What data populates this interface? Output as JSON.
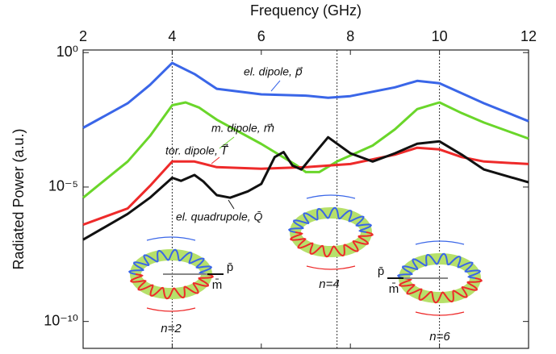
{
  "chart_data": {
    "type": "line",
    "title": "Frequency (GHz)",
    "y_label": "Radiated Power (a.u.)",
    "log_y": true,
    "xlim": [
      2,
      12
    ],
    "xticks": [
      2,
      4,
      6,
      8,
      10,
      12
    ],
    "ylim": [
      1e-11,
      1.25
    ],
    "yticks": [
      {
        "value": 1,
        "label": "10⁰"
      },
      {
        "value": 1e-05,
        "label": "10⁻⁵"
      },
      {
        "value": 1e-10,
        "label": "10⁻¹⁰"
      }
    ],
    "vlines": [
      4,
      7.7,
      10
    ],
    "series": [
      {
        "name": "el. dipole, p⃗",
        "color": "#3a66e8",
        "x": [
          2,
          3,
          3.5,
          4,
          4.5,
          5,
          6,
          7,
          7.5,
          8,
          9,
          9.5,
          10,
          11,
          12
        ],
        "values": [
          0.0016,
          0.013,
          0.063,
          0.41,
          0.16,
          0.045,
          0.028,
          0.025,
          0.021,
          0.024,
          0.051,
          0.089,
          0.072,
          0.013,
          0.0028
        ]
      },
      {
        "name": "m. dipole, m⃗",
        "color": "#6ad62a",
        "x": [
          2,
          3,
          3.5,
          4,
          4.3,
          4.6,
          5,
          6,
          6.8,
          7,
          7.3,
          7.7,
          8.5,
          9,
          9.5,
          10,
          10.5,
          11,
          12
        ],
        "values": [
          4e-06,
          8.9e-05,
          0.00079,
          0.011,
          0.014,
          0.0091,
          0.0032,
          0.0004,
          6.3e-05,
          3.6e-05,
          3.6e-05,
          8.9e-05,
          0.00035,
          0.0014,
          0.0079,
          0.014,
          0.0056,
          0.0025,
          0.00063
        ]
      },
      {
        "name": "tor. dipole, T⃗",
        "color": "#ee2a2a",
        "x": [
          2,
          3,
          3.5,
          4,
          4.5,
          5,
          6,
          7,
          8,
          9,
          9.5,
          10,
          10.5,
          11,
          12
        ],
        "values": [
          4e-07,
          1.6e-06,
          1.1e-05,
          8.9e-05,
          8.9e-05,
          5.5e-05,
          4.8e-05,
          5.5e-05,
          7.2e-05,
          0.00016,
          0.00029,
          0.00025,
          0.00013,
          8.9e-05,
          7.2e-05
        ]
      },
      {
        "name": "el. quadrupole, Q̄",
        "color": "#111111",
        "x": [
          2,
          3,
          3.5,
          4,
          4.2,
          4.5,
          4.7,
          5,
          5.3,
          5.7,
          6,
          6.3,
          6.5,
          6.7,
          6.9,
          7.2,
          7.5,
          8,
          8.5,
          9,
          9.5,
          10,
          10.5,
          11,
          12
        ],
        "values": [
          1.1e-07,
          1e-06,
          4e-06,
          2.2e-05,
          1.7e-05,
          2.8e-05,
          1.6e-05,
          5e-06,
          4e-06,
          6.9e-06,
          1.3e-05,
          0.00013,
          0.0002,
          6.3e-05,
          4.5e-05,
          0.00018,
          0.00071,
          0.00018,
          8.9e-05,
          0.00018,
          0.00041,
          0.0005,
          0.00016,
          4.5e-05,
          1.5e-05
        ]
      }
    ],
    "illustrations": [
      {
        "label": "n=2",
        "p": "p̄",
        "m": "m̄"
      },
      {
        "label": "n=4"
      },
      {
        "label": "n=6",
        "p": "p̄",
        "m": "m̄"
      }
    ]
  }
}
